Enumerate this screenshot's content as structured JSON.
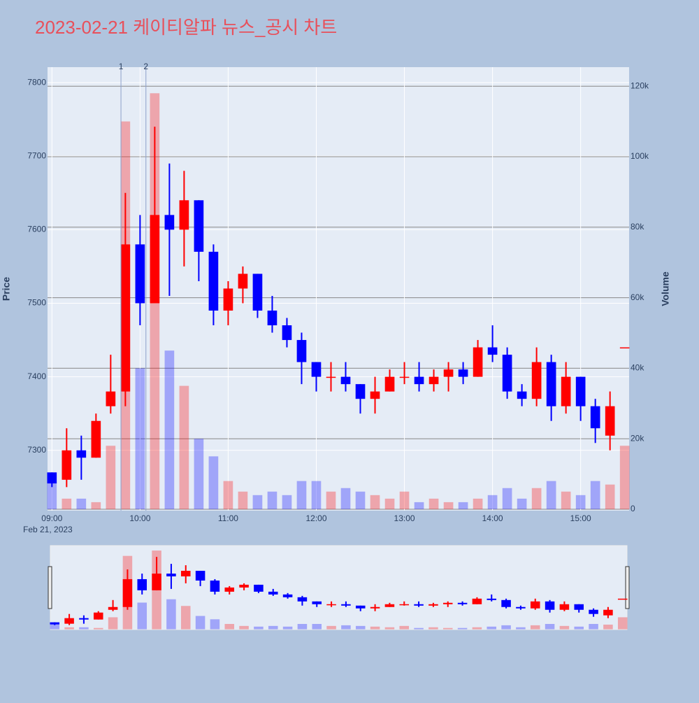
{
  "chart_data": {
    "type": "candlestick",
    "title": "2023-02-21 케이티알파 뉴스_공시 차트",
    "y_label": "Price",
    "y2_label": "Volume",
    "x_date_label": "Feb 21, 2023",
    "up_color": "#ff0000",
    "down_color": "#0000ff",
    "x": [
      "2023-02-21 09:00",
      "2023-02-21 09:10",
      "2023-02-21 09:20",
      "2023-02-21 09:30",
      "2023-02-21 09:40",
      "2023-02-21 09:50",
      "2023-02-21 10:00",
      "2023-02-21 10:10",
      "2023-02-21 10:20",
      "2023-02-21 10:30",
      "2023-02-21 10:40",
      "2023-02-21 10:50",
      "2023-02-21 11:00",
      "2023-02-21 11:10",
      "2023-02-21 11:20",
      "2023-02-21 11:30",
      "2023-02-21 11:40",
      "2023-02-21 11:50",
      "2023-02-21 12:00",
      "2023-02-21 12:10",
      "2023-02-21 12:20",
      "2023-02-21 12:30",
      "2023-02-21 12:40",
      "2023-02-21 12:50",
      "2023-02-21 13:00",
      "2023-02-21 13:10",
      "2023-02-21 13:20",
      "2023-02-21 13:30",
      "2023-02-21 13:40",
      "2023-02-21 13:50",
      "2023-02-21 14:00",
      "2023-02-21 14:10",
      "2023-02-21 14:20",
      "2023-02-21 14:30",
      "2023-02-21 14:40",
      "2023-02-21 14:50",
      "2023-02-21 15:00",
      "2023-02-21 15:10",
      "2023-02-21 15:20",
      "2023-02-21 15:30"
    ],
    "open": [
      7270,
      7260,
      7300,
      7290,
      7360,
      7380,
      7580,
      7500,
      7620,
      7600,
      7640,
      7570,
      7490,
      7520,
      7540,
      7490,
      7470,
      7450,
      7420,
      7400,
      7400,
      7390,
      7370,
      7380,
      7400,
      7400,
      7390,
      7400,
      7410,
      7400,
      7440,
      7430,
      7380,
      7370,
      7420,
      7360,
      7400,
      7360,
      7320,
      7440
    ],
    "high": [
      7270,
      7330,
      7320,
      7350,
      7430,
      7650,
      7620,
      7740,
      7690,
      7680,
      7640,
      7580,
      7530,
      7550,
      7540,
      7510,
      7480,
      7460,
      7420,
      7420,
      7420,
      7390,
      7400,
      7410,
      7420,
      7420,
      7410,
      7420,
      7420,
      7450,
      7470,
      7440,
      7390,
      7440,
      7430,
      7420,
      7400,
      7370,
      7380,
      7440
    ],
    "low": [
      7250,
      7250,
      7260,
      7290,
      7350,
      7360,
      7470,
      7500,
      7510,
      7550,
      7530,
      7470,
      7470,
      7500,
      7480,
      7460,
      7440,
      7390,
      7380,
      7380,
      7380,
      7350,
      7350,
      7380,
      7390,
      7380,
      7380,
      7380,
      7390,
      7400,
      7420,
      7370,
      7360,
      7360,
      7340,
      7350,
      7340,
      7310,
      7300,
      7440
    ],
    "close": [
      7255,
      7300,
      7290,
      7340,
      7380,
      7580,
      7500,
      7620,
      7600,
      7640,
      7570,
      7490,
      7520,
      7540,
      7490,
      7470,
      7450,
      7420,
      7400,
      7400,
      7390,
      7370,
      7380,
      7400,
      7400,
      7390,
      7400,
      7410,
      7400,
      7440,
      7430,
      7380,
      7370,
      7420,
      7360,
      7400,
      7360,
      7330,
      7360,
      7440
    ],
    "volume": [
      8000,
      3000,
      3000,
      2000,
      18000,
      110000,
      40000,
      118000,
      45000,
      35000,
      20000,
      15000,
      8000,
      5000,
      4000,
      5000,
      4000,
      8000,
      8000,
      5000,
      6000,
      5000,
      4000,
      3000,
      5000,
      2000,
      3000,
      2000,
      2000,
      3000,
      4000,
      6000,
      3000,
      6000,
      8000,
      5000,
      4000,
      8000,
      7000,
      18000
    ],
    "xlim": [
      "2023-02-21 08:57",
      "2023-02-21 15:33"
    ],
    "xticks": [
      {
        "value": "2023-02-21 09:00",
        "label": "09:00"
      },
      {
        "value": "2023-02-21 10:00",
        "label": "10:00"
      },
      {
        "value": "2023-02-21 11:00",
        "label": "11:00"
      },
      {
        "value": "2023-02-21 12:00",
        "label": "12:00"
      },
      {
        "value": "2023-02-21 13:00",
        "label": "13:00"
      },
      {
        "value": "2023-02-21 14:00",
        "label": "14:00"
      },
      {
        "value": "2023-02-21 15:00",
        "label": "15:00"
      }
    ],
    "ylim": [
      7218,
      7821
    ],
    "yticks": [
      7300,
      7400,
      7500,
      7600,
      7700,
      7800
    ],
    "y2lim": [
      -400,
      125400
    ],
    "y2ticks": [
      0,
      {
        "value": 20000,
        "label": "20k"
      },
      {
        "value": 40000,
        "label": "40k"
      },
      {
        "value": 60000,
        "label": "60k"
      },
      {
        "value": 80000,
        "label": "80k"
      },
      {
        "value": 100000,
        "label": "100k"
      },
      {
        "value": 120000,
        "label": "120k"
      }
    ],
    "annotations": [
      {
        "x": "2023-02-21 09:47",
        "text": "1"
      },
      {
        "x": "2023-02-21 10:04",
        "text": "2"
      }
    ]
  }
}
